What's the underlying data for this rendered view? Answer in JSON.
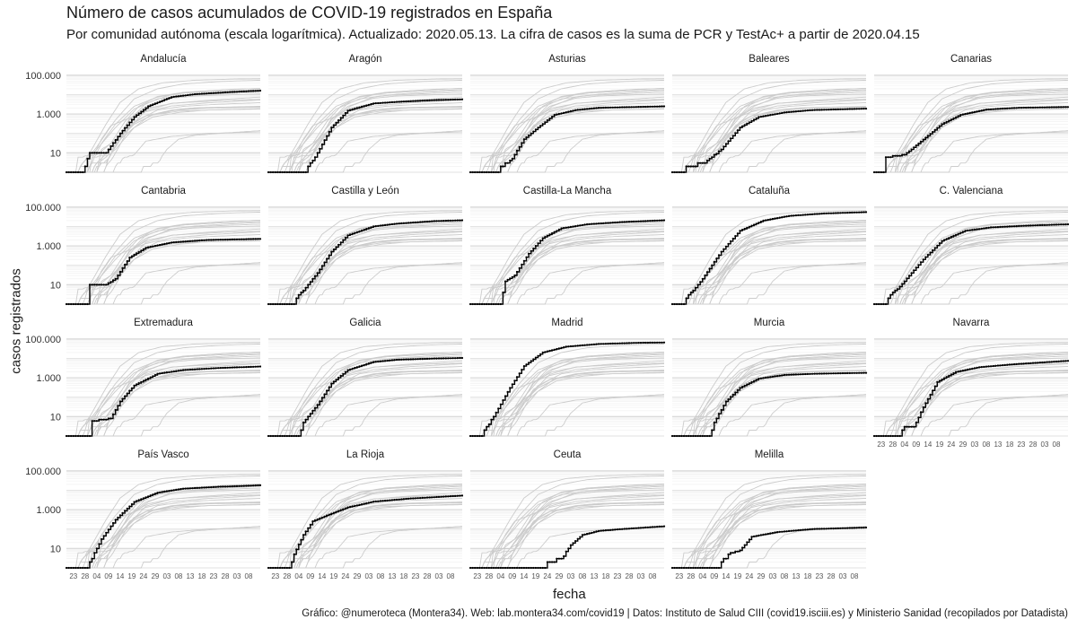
{
  "chart_data": {
    "type": "line",
    "title": "Número de casos acumulados de COVID-19 registrados en España",
    "subtitle": "Por comunidad autónoma (escala logarítmica). Actualizado: 2020.05.13. La cifra de casos es la suma de PCR y TestAc+ a partir de 2020.04.15",
    "xlabel": "fecha",
    "ylabel": "casos registrados",
    "caption": "Gráfico: @numeroteca (Montera34). Web: lab.montera34.com/covid19 | Datos: Instituto de Salud CIII (covid19.isciii.es) y Ministerio Sanidad (recopilados por Datadista)",
    "y_scale": "log",
    "ylim": [
      1,
      150000
    ],
    "y_ticks": [
      {
        "value": 10,
        "label": "10"
      },
      {
        "value": 1000,
        "label": "1.000"
      },
      {
        "value": 100000,
        "label": "100.000"
      }
    ],
    "x_ticks": [
      "23",
      "28",
      "04",
      "09",
      "14",
      "19",
      "24",
      "29",
      "03",
      "08",
      "13",
      "18",
      "23",
      "28",
      "03",
      "08"
    ],
    "x_tick_dates": [
      "2020-02-23",
      "2020-02-28",
      "2020-03-04",
      "2020-03-09",
      "2020-03-14",
      "2020-03-19",
      "2020-03-24",
      "2020-03-29",
      "2020-04-03",
      "2020-04-08",
      "2020-04-13",
      "2020-04-18",
      "2020-04-23",
      "2020-04-28",
      "2020-05-03",
      "2020-05-08"
    ],
    "x_range": [
      "2020-02-20",
      "2020-05-13"
    ],
    "grid": true,
    "background_series_color": "#cccccc",
    "highlight_color": "#000000",
    "series": [
      {
        "name": "Andalucía",
        "x": [
          "2020-02-20",
          "2020-02-27",
          "2020-03-01",
          "2020-03-08",
          "2020-03-14",
          "2020-03-20",
          "2020-03-26",
          "2020-04-05",
          "2020-04-15",
          "2020-04-30",
          "2020-05-13"
        ],
        "values": [
          1,
          1,
          10,
          10,
          100,
          700,
          2500,
          7500,
          10500,
          13500,
          16000
        ]
      },
      {
        "name": "Aragón",
        "x": [
          "2020-02-20",
          "2020-03-05",
          "2020-03-07",
          "2020-03-12",
          "2020-03-18",
          "2020-03-25",
          "2020-04-05",
          "2020-04-15",
          "2020-05-01",
          "2020-05-13"
        ],
        "values": [
          1,
          1,
          1,
          10,
          200,
          1500,
          3500,
          4200,
          5200,
          5700
        ]
      },
      {
        "name": "Asturias",
        "x": [
          "2020-02-20",
          "2020-03-01",
          "2020-03-09",
          "2020-03-14",
          "2020-03-20",
          "2020-03-27",
          "2020-04-05",
          "2020-04-15",
          "2020-04-30",
          "2020-05-13"
        ],
        "values": [
          1,
          1,
          5,
          50,
          200,
          900,
          1600,
          2100,
          2300,
          2500
        ]
      },
      {
        "name": "Baleares",
        "x": [
          "2020-02-20",
          "2020-02-25",
          "2020-02-26",
          "2020-03-05",
          "2020-03-12",
          "2020-03-20",
          "2020-03-28",
          "2020-04-08",
          "2020-04-20",
          "2020-05-13"
        ],
        "values": [
          1,
          1,
          2,
          3,
          15,
          200,
          700,
          1200,
          1600,
          1900
        ]
      },
      {
        "name": "Canarias",
        "x": [
          "2020-02-20",
          "2020-02-24",
          "2020-02-25",
          "2020-03-04",
          "2020-03-10",
          "2020-03-20",
          "2020-03-28",
          "2020-04-08",
          "2020-04-22",
          "2020-05-13"
        ],
        "values": [
          1,
          1,
          6,
          8,
          30,
          300,
          900,
          1700,
          2100,
          2300
        ]
      },
      {
        "name": "Cantabria",
        "x": [
          "2020-02-20",
          "2020-02-29",
          "2020-03-01",
          "2020-03-08",
          "2020-03-12",
          "2020-03-18",
          "2020-03-25",
          "2020-04-05",
          "2020-04-20",
          "2020-05-13"
        ],
        "values": [
          1,
          1,
          10,
          10,
          20,
          250,
          800,
          1500,
          2000,
          2300
        ]
      },
      {
        "name": "Castilla y León",
        "x": [
          "2020-02-20",
          "2020-03-01",
          "2020-03-06",
          "2020-03-12",
          "2020-03-18",
          "2020-03-25",
          "2020-04-05",
          "2020-04-15",
          "2020-05-01",
          "2020-05-13"
        ],
        "values": [
          1,
          1,
          5,
          40,
          500,
          3500,
          10000,
          14000,
          19000,
          21000
        ]
      },
      {
        "name": "Castilla-La Mancha",
        "x": [
          "2020-02-20",
          "2020-03-04",
          "2020-03-06",
          "2020-03-10",
          "2020-03-16",
          "2020-03-22",
          "2020-03-30",
          "2020-04-10",
          "2020-04-25",
          "2020-05-13"
        ],
        "values": [
          1,
          1,
          15,
          30,
          400,
          2500,
          8000,
          13000,
          17000,
          21000
        ]
      },
      {
        "name": "Cataluña",
        "x": [
          "2020-02-20",
          "2020-02-24",
          "2020-02-26",
          "2020-03-04",
          "2020-03-12",
          "2020-03-20",
          "2020-03-30",
          "2020-04-10",
          "2020-04-25",
          "2020-05-13"
        ],
        "values": [
          1,
          1,
          2,
          20,
          500,
          6000,
          20000,
          35000,
          47000,
          55000
        ]
      },
      {
        "name": "C. Valenciana",
        "x": [
          "2020-02-20",
          "2020-02-25",
          "2020-02-26",
          "2020-03-04",
          "2020-03-12",
          "2020-03-20",
          "2020-03-30",
          "2020-04-10",
          "2020-04-25",
          "2020-05-13"
        ],
        "values": [
          1,
          1,
          2,
          15,
          200,
          1800,
          6000,
          9000,
          11000,
          13000
        ]
      },
      {
        "name": "Extremadura",
        "x": [
          "2020-02-20",
          "2020-03-01",
          "2020-03-02",
          "2020-03-10",
          "2020-03-14",
          "2020-03-20",
          "2020-03-30",
          "2020-04-10",
          "2020-04-25",
          "2020-05-13"
        ],
        "values": [
          1,
          1,
          6,
          8,
          60,
          400,
          1600,
          2500,
          3200,
          3800
        ]
      },
      {
        "name": "Galicia",
        "x": [
          "2020-02-20",
          "2020-03-04",
          "2020-03-06",
          "2020-03-12",
          "2020-03-18",
          "2020-03-25",
          "2020-04-05",
          "2020-04-15",
          "2020-05-01",
          "2020-05-13"
        ],
        "values": [
          1,
          1,
          5,
          40,
          500,
          2500,
          6500,
          8500,
          9800,
          10500
        ]
      },
      {
        "name": "Madrid",
        "x": [
          "2020-02-20",
          "2020-02-25",
          "2020-02-26",
          "2020-03-01",
          "2020-03-08",
          "2020-03-14",
          "2020-03-22",
          "2020-04-01",
          "2020-04-15",
          "2020-05-01",
          "2020-05-13"
        ],
        "values": [
          1,
          1,
          2,
          10,
          300,
          4000,
          20000,
          40000,
          55000,
          63000,
          66000
        ]
      },
      {
        "name": "Murcia",
        "x": [
          "2020-02-20",
          "2020-03-07",
          "2020-03-09",
          "2020-03-14",
          "2020-03-20",
          "2020-03-28",
          "2020-04-08",
          "2020-04-20",
          "2020-05-13"
        ],
        "values": [
          1,
          1,
          5,
          60,
          300,
          900,
          1400,
          1600,
          1800
        ]
      },
      {
        "name": "Navarra",
        "x": [
          "2020-02-20",
          "2020-03-02",
          "2020-03-04",
          "2020-03-08",
          "2020-03-12",
          "2020-03-18",
          "2020-03-26",
          "2020-04-05",
          "2020-04-20",
          "2020-05-13"
        ],
        "values": [
          1,
          1,
          3,
          3,
          30,
          600,
          2000,
          3500,
          5000,
          7500
        ]
      },
      {
        "name": "País Vasco",
        "x": [
          "2020-02-20",
          "2020-02-28",
          "2020-03-01",
          "2020-03-06",
          "2020-03-12",
          "2020-03-20",
          "2020-03-30",
          "2020-04-10",
          "2020-04-25",
          "2020-05-13"
        ],
        "values": [
          1,
          1,
          2,
          30,
          300,
          2500,
          7500,
          12000,
          15000,
          18000
        ]
      },
      {
        "name": "La Rioja",
        "x": [
          "2020-02-20",
          "2020-02-29",
          "2020-03-02",
          "2020-03-06",
          "2020-03-10",
          "2020-03-16",
          "2020-03-25",
          "2020-04-05",
          "2020-04-20",
          "2020-05-13"
        ],
        "values": [
          1,
          1,
          5,
          50,
          250,
          500,
          1300,
          2600,
          3700,
          5300
        ]
      },
      {
        "name": "Ceuta",
        "x": [
          "2020-02-20",
          "2020-03-23",
          "2020-03-24",
          "2020-03-30",
          "2020-04-03",
          "2020-04-08",
          "2020-04-15",
          "2020-04-25",
          "2020-05-13"
        ],
        "values": [
          1,
          1,
          2,
          3,
          15,
          50,
          80,
          100,
          140
        ]
      },
      {
        "name": "Melilla",
        "x": [
          "2020-02-20",
          "2020-03-10",
          "2020-03-12",
          "2020-03-16",
          "2020-03-20",
          "2020-03-25",
          "2020-04-05",
          "2020-04-20",
          "2020-05-13"
        ],
        "values": [
          1,
          1,
          2,
          6,
          8,
          40,
          70,
          100,
          120
        ]
      }
    ]
  }
}
